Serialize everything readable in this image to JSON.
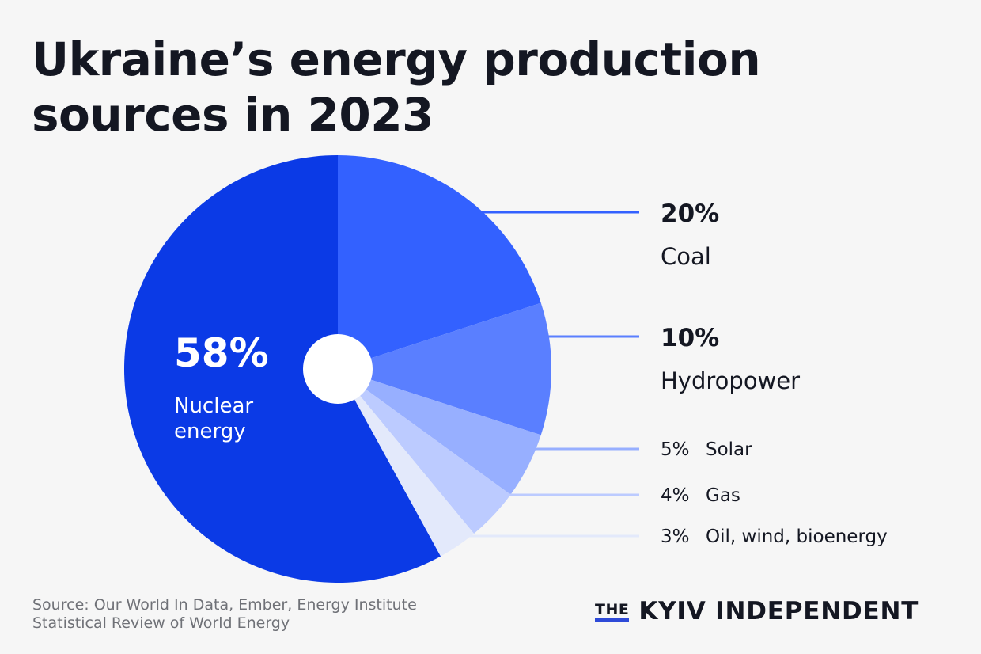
{
  "title": {
    "line1": "Ukraine’s energy production",
    "line2": "sources in 2023"
  },
  "source": {
    "line1": "Source: Our World In Data, Ember, Energy Institute",
    "line2": "Statistical Review of World Energy"
  },
  "brand": {
    "the": "THE",
    "name": "KYIV INDEPENDENT"
  },
  "chart_data": {
    "type": "pie",
    "title": "Ukraine’s energy production sources in 2023",
    "unit": "%",
    "categories": [
      "Nuclear energy",
      "Coal",
      "Hydropower",
      "Solar",
      "Gas",
      "Oil, wind, bioenergy"
    ],
    "values": [
      58,
      20,
      10,
      5,
      4,
      3
    ],
    "labels": [
      {
        "pct": "58%",
        "name": "Nuclear energy",
        "lines": [
          "Nuclear",
          "energy"
        ]
      },
      {
        "pct": "20%",
        "name": "Coal"
      },
      {
        "pct": "10%",
        "name": "Hydropower"
      },
      {
        "pct": "5%",
        "name": "Solar"
      },
      {
        "pct": "4%",
        "name": "Gas"
      },
      {
        "pct": "3%",
        "name": "Oil, wind, bioenergy"
      }
    ],
    "colors": [
      "#0b3ae6",
      "#3361ff",
      "#5a7fff",
      "#97afff",
      "#bccbff",
      "#e3e9fb"
    ],
    "center_hole": true
  }
}
